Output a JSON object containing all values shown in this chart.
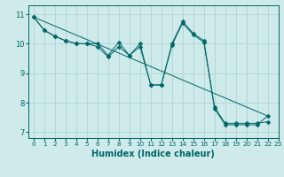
{
  "title": "",
  "xlabel": "Humidex (Indice chaleur)",
  "background_color": "#ceeaea",
  "line_color": "#006666",
  "grid_color": "#aacfcf",
  "xlim": [
    -0.5,
    23
  ],
  "ylim": [
    6.8,
    11.3
  ],
  "yticks": [
    7,
    8,
    9,
    10,
    11
  ],
  "xticks": [
    0,
    1,
    2,
    3,
    4,
    5,
    6,
    7,
    8,
    9,
    10,
    11,
    12,
    13,
    14,
    15,
    16,
    17,
    18,
    19,
    20,
    21,
    22,
    23
  ],
  "series1_x": [
    0,
    1,
    2,
    3,
    4,
    5,
    6,
    7,
    8,
    9,
    10,
    11,
    12,
    13,
    14,
    15,
    16,
    17,
    18,
    19,
    20,
    21,
    22
  ],
  "series1_y": [
    10.9,
    10.45,
    10.25,
    10.1,
    10.0,
    10.0,
    10.0,
    9.6,
    10.05,
    9.6,
    10.0,
    8.6,
    8.6,
    10.0,
    10.75,
    10.35,
    10.1,
    7.85,
    7.3,
    7.3,
    7.3,
    7.3,
    7.35
  ],
  "series2_x": [
    0,
    1,
    2,
    3,
    4,
    5,
    6,
    7,
    8,
    9,
    10,
    11,
    12,
    13,
    14,
    15,
    16,
    17,
    18,
    19,
    20,
    21,
    22
  ],
  "series2_y": [
    10.9,
    10.45,
    10.25,
    10.1,
    10.0,
    10.0,
    9.9,
    9.55,
    9.9,
    9.6,
    9.9,
    8.6,
    8.6,
    9.95,
    10.7,
    10.3,
    10.05,
    7.8,
    7.25,
    7.25,
    7.25,
    7.25,
    7.55
  ],
  "series3_x": [
    0,
    22
  ],
  "series3_y": [
    10.9,
    7.55
  ],
  "markersize": 2.5
}
